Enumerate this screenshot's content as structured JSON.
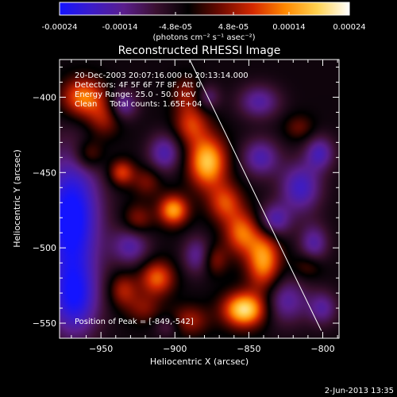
{
  "colorbar": {
    "ticks": [
      "-0.00024",
      "-0.00014",
      "-4.8e-05",
      "4.8e-05",
      "0.00014",
      "0.00024"
    ],
    "unit_label": "(photons cm⁻² s⁻¹ asec⁻²)",
    "range": [
      -0.00024,
      0.00024
    ],
    "colors": [
      "#1414ff",
      "#3c1cc8",
      "#5a1e8c",
      "#3a1030",
      "#000000",
      "#6e0a00",
      "#d42800",
      "#ff8800",
      "#ffd250",
      "#ffffff"
    ]
  },
  "title": "Reconstructed RHESSI Image",
  "info": {
    "time": "20-Dec-2003 20:07:16.000 to 20:13:14.000",
    "detectors": "Detectors: 4F 5F 6F 7F 8F, Att 0",
    "energy": "Energy Range: 25.0 - 50.0 keV",
    "clean": "Clean     Total counts: 1.65E+04"
  },
  "peak_text": "Position of Peak = [-849,-542]",
  "date_stamp": "2-Jun-2013 13:35",
  "chart_data": {
    "type": "heatmap",
    "title": "Reconstructed RHESSI Image",
    "xlabel": "Heliocentric X (arcsec)",
    "ylabel": "Heliocentric Y (arcsec)",
    "xlim": [
      -978,
      -789
    ],
    "ylim": [
      -560,
      -375
    ],
    "x_ticks": [
      -950,
      -900,
      -850,
      -800
    ],
    "y_ticks": [
      -400,
      -450,
      -500,
      -550
    ],
    "x_tick_labels": [
      "−950",
      "−900",
      "−850",
      "−800"
    ],
    "y_tick_labels": [
      "−400",
      "−450",
      "−500",
      "−550"
    ],
    "limb_line": [
      [
        -890,
        -375
      ],
      [
        -801,
        -555
      ]
    ],
    "peak": [
      -849,
      -542
    ],
    "blobs": [
      {
        "x": -853,
        "y": -541,
        "amp": 0.000245,
        "sx": 10,
        "sy": 8
      },
      {
        "x": -840,
        "y": -508,
        "amp": 0.00019,
        "sx": 8,
        "sy": 14
      },
      {
        "x": -855,
        "y": -490,
        "amp": 0.00015,
        "sx": 8,
        "sy": 10
      },
      {
        "x": -878,
        "y": -443,
        "amp": 0.00022,
        "sx": 9,
        "sy": 12
      },
      {
        "x": -866,
        "y": -470,
        "amp": 0.00013,
        "sx": 8,
        "sy": 9
      },
      {
        "x": -889,
        "y": -418,
        "amp": 0.00012,
        "sx": 8,
        "sy": 9
      },
      {
        "x": -892,
        "y": -398,
        "amp": 8e-05,
        "sx": 7,
        "sy": 8
      },
      {
        "x": -962,
        "y": -400,
        "amp": 0.00017,
        "sx": 10,
        "sy": 9
      },
      {
        "x": -948,
        "y": -414,
        "amp": 9e-05,
        "sx": 8,
        "sy": 9
      },
      {
        "x": -958,
        "y": -438,
        "amp": 9e-05,
        "sx": 7,
        "sy": 7
      },
      {
        "x": -936,
        "y": -450,
        "amp": 0.00013,
        "sx": 6,
        "sy": 6
      },
      {
        "x": -919,
        "y": -456,
        "amp": 7e-05,
        "sx": 7,
        "sy": 7
      },
      {
        "x": -901,
        "y": -475,
        "amp": 0.00019,
        "sx": 7,
        "sy": 7
      },
      {
        "x": -925,
        "y": -481,
        "amp": 8e-05,
        "sx": 7,
        "sy": 7
      },
      {
        "x": -912,
        "y": -520,
        "amp": 0.00015,
        "sx": 8,
        "sy": 8
      },
      {
        "x": -935,
        "y": -528,
        "amp": 0.0001,
        "sx": 7,
        "sy": 8
      },
      {
        "x": -921,
        "y": -540,
        "amp": 7e-05,
        "sx": 8,
        "sy": 7
      },
      {
        "x": -890,
        "y": -548,
        "amp": 9e-05,
        "sx": 9,
        "sy": 7
      },
      {
        "x": -873,
        "y": -508,
        "amp": 8e-05,
        "sx": 6,
        "sy": 7
      },
      {
        "x": -816,
        "y": -420,
        "amp": 6e-05,
        "sx": 7,
        "sy": 6
      },
      {
        "x": -810,
        "y": -512,
        "amp": 6e-05,
        "sx": 7,
        "sy": 6
      },
      {
        "x": -970,
        "y": -480,
        "amp": -0.00022,
        "sx": 14,
        "sy": 30
      },
      {
        "x": -968,
        "y": -535,
        "amp": -0.00016,
        "sx": 12,
        "sy": 18
      },
      {
        "x": -935,
        "y": -405,
        "amp": -0.00011,
        "sx": 7,
        "sy": 7
      },
      {
        "x": -907,
        "y": -437,
        "amp": -0.00012,
        "sx": 8,
        "sy": 9
      },
      {
        "x": -930,
        "y": -499,
        "amp": -0.00011,
        "sx": 9,
        "sy": 9
      },
      {
        "x": -885,
        "y": -505,
        "amp": -0.0001,
        "sx": 7,
        "sy": 9
      },
      {
        "x": -843,
        "y": -403,
        "amp": -0.00011,
        "sx": 10,
        "sy": 8
      },
      {
        "x": -842,
        "y": -440,
        "amp": -0.00012,
        "sx": 9,
        "sy": 9
      },
      {
        "x": -815,
        "y": -460,
        "amp": -0.00014,
        "sx": 10,
        "sy": 12
      },
      {
        "x": -802,
        "y": -437,
        "amp": -0.00012,
        "sx": 7,
        "sy": 8
      },
      {
        "x": -833,
        "y": -482,
        "amp": -0.00013,
        "sx": 8,
        "sy": 8
      },
      {
        "x": -806,
        "y": -497,
        "amp": -0.00011,
        "sx": 7,
        "sy": 9
      },
      {
        "x": -825,
        "y": -535,
        "amp": -0.00011,
        "sx": 11,
        "sy": 11
      },
      {
        "x": -800,
        "y": -540,
        "amp": -0.0001,
        "sx": 7,
        "sy": 8
      },
      {
        "x": -878,
        "y": -400,
        "amp": -8e-05,
        "sx": 6,
        "sy": 6
      },
      {
        "x": -905,
        "y": -552,
        "amp": -6e-05,
        "sx": 6,
        "sy": 5
      }
    ]
  }
}
